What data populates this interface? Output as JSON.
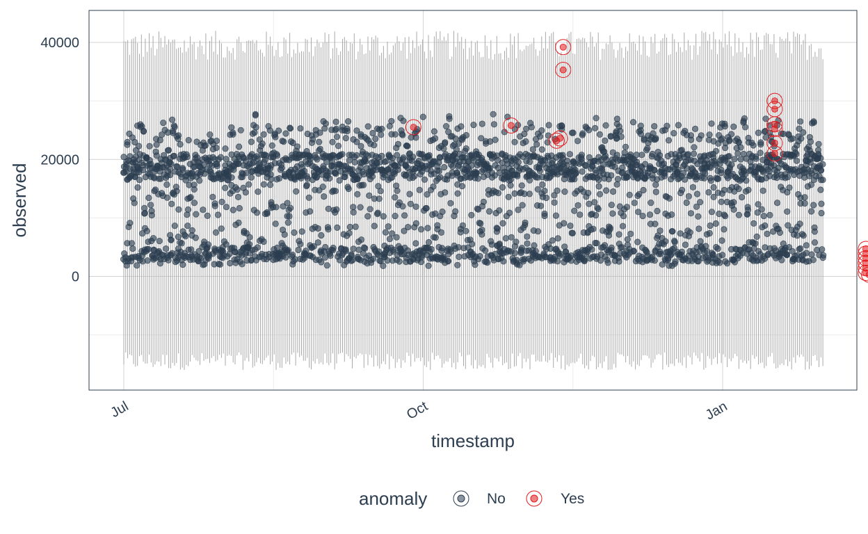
{
  "chart_data": {
    "type": "scatter",
    "title": "",
    "xlabel": "timestamp",
    "ylabel": "observed",
    "x_ticks": [
      "Jul",
      "Oct",
      "Jan"
    ],
    "y_ticks": [
      0,
      20000,
      40000
    ],
    "ylim": [
      -19500,
      45500
    ],
    "x_range_months": "Jul to late Jan",
    "grid": true,
    "legend": {
      "title": "anomaly",
      "position": "bottom",
      "entries": [
        "No",
        "Yes"
      ]
    },
    "colors": {
      "normal": "#2c3e50",
      "anomaly": "#e31a1c",
      "band": "#a9a9a9",
      "grid": "#d3d3d3"
    },
    "series": [
      {
        "name": "No",
        "description": "dense daily-seasonal observations, mostly between 2000 and 27000",
        "values_range": [
          2000,
          30000
        ]
      },
      {
        "name": "Yes",
        "points": [
          {
            "x_day": 89,
            "y": 25500
          },
          {
            "x_day": 119,
            "y": 25800
          },
          {
            "x_day": 133,
            "y": 23200
          },
          {
            "x_day": 134,
            "y": 23600
          },
          {
            "x_day": 135,
            "y": 39200
          },
          {
            "x_day": 135,
            "y": 35300
          },
          {
            "x_day": 200,
            "y": 30000
          },
          {
            "x_day": 200,
            "y": 28600
          },
          {
            "x_day": 200,
            "y": 26000
          },
          {
            "x_day": 200,
            "y": 25200
          },
          {
            "x_day": 200,
            "y": 22800
          },
          {
            "x_day": 200,
            "y": 21000
          },
          {
            "x_day": 228,
            "y": 4700
          },
          {
            "x_day": 228,
            "y": 3900
          },
          {
            "x_day": 228,
            "y": 3100
          },
          {
            "x_day": 228,
            "y": 2300
          },
          {
            "x_day": 228,
            "y": 1400
          },
          {
            "x_day": 228,
            "y": 600
          },
          {
            "x_day": 229,
            "y": 300
          }
        ]
      }
    ]
  }
}
